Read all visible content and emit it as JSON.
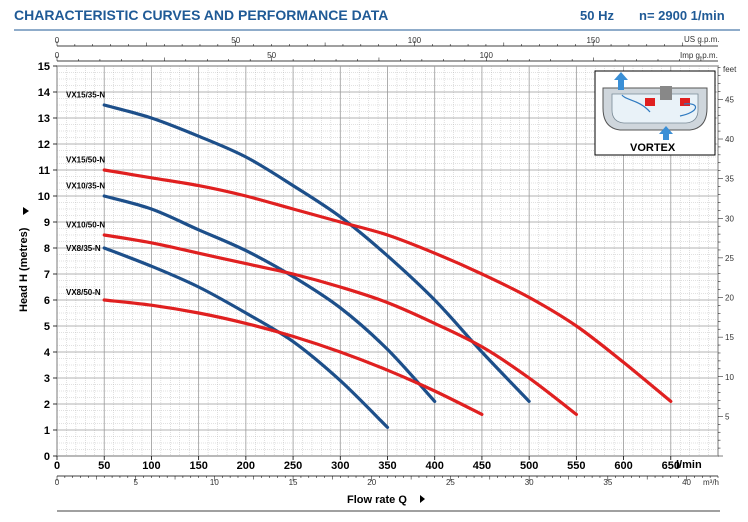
{
  "header": {
    "title": "CHARACTERISTIC CURVES AND PERFORMANCE DATA",
    "freq": "50 Hz",
    "speed": "n= 2900  1/min"
  },
  "inset": {
    "label": "VORTEX"
  },
  "colors": {
    "red": "#e02020",
    "blue": "#1d4f8a",
    "grid": "#9a9a9a",
    "header": "#1f5a96"
  },
  "chart_data": {
    "type": "line",
    "xlabel": "Flow rate Q",
    "ylabel": "Head H (metres)",
    "x_unit": "l/min",
    "xlim": [
      0,
      700
    ],
    "ylim": [
      0,
      15
    ],
    "x_ticks": [
      "0",
      "50",
      "100",
      "150",
      "200",
      "250",
      "300",
      "350",
      "400",
      "450",
      "500",
      "550",
      "600",
      "650"
    ],
    "y_ticks": [
      "0",
      "1",
      "2",
      "3",
      "4",
      "5",
      "6",
      "7",
      "8",
      "9",
      "10",
      "11",
      "12",
      "13",
      "14",
      "15"
    ],
    "secondary_axes": {
      "us_gpm": {
        "unit": "US g.p.m.",
        "ticks": [
          "0",
          "50",
          "100",
          "150"
        ]
      },
      "imp_gpm": {
        "unit": "Imp g.p.m.",
        "ticks": [
          "0",
          "50",
          "100"
        ]
      },
      "m3h": {
        "unit": "m³/h",
        "ticks": [
          "0",
          "5",
          "10",
          "15",
          "20",
          "25",
          "30",
          "35",
          "40"
        ]
      },
      "feet": {
        "unit": "feet",
        "ticks": [
          "5",
          "10",
          "15",
          "20",
          "25",
          "30",
          "35",
          "40",
          "45"
        ]
      }
    },
    "grid": true,
    "series": [
      {
        "name": "VX15/35-N",
        "color": "blue",
        "label_y": 13.9,
        "x": [
          50,
          100,
          150,
          200,
          250,
          300,
          350,
          400,
          450,
          500
        ],
        "y": [
          13.5,
          13.0,
          12.3,
          11.5,
          10.4,
          9.2,
          7.7,
          6.0,
          4.0,
          2.1
        ]
      },
      {
        "name": "VX15/50-N",
        "color": "red",
        "label_y": 11.4,
        "x": [
          50,
          100,
          150,
          200,
          250,
          300,
          350,
          400,
          450,
          500,
          550,
          600,
          650
        ],
        "y": [
          11.0,
          10.7,
          10.4,
          10.0,
          9.5,
          9.0,
          8.5,
          7.8,
          7.0,
          6.1,
          5.0,
          3.6,
          2.1
        ]
      },
      {
        "name": "VX10/35-N",
        "color": "blue",
        "label_y": 10.4,
        "x": [
          50,
          100,
          150,
          200,
          250,
          300,
          350,
          400
        ],
        "y": [
          10.0,
          9.5,
          8.7,
          7.9,
          6.9,
          5.7,
          4.1,
          2.1
        ]
      },
      {
        "name": "VX10/50-N",
        "color": "red",
        "label_y": 8.9,
        "x": [
          50,
          100,
          150,
          200,
          250,
          300,
          350,
          400,
          450,
          500,
          550
        ],
        "y": [
          8.5,
          8.2,
          7.8,
          7.4,
          7.0,
          6.5,
          5.9,
          5.1,
          4.2,
          3.0,
          1.6
        ]
      },
      {
        "name": "VX8/35-N",
        "color": "blue",
        "label_y": 8.0,
        "x": [
          50,
          100,
          150,
          200,
          250,
          300,
          350
        ],
        "y": [
          8.0,
          7.3,
          6.5,
          5.5,
          4.4,
          2.9,
          1.1
        ]
      },
      {
        "name": "VX8/50-N",
        "color": "red",
        "label_y": 6.3,
        "x": [
          50,
          100,
          150,
          200,
          250,
          300,
          350,
          400,
          450
        ],
        "y": [
          6.0,
          5.8,
          5.5,
          5.1,
          4.6,
          4.0,
          3.3,
          2.5,
          1.6
        ]
      }
    ]
  }
}
